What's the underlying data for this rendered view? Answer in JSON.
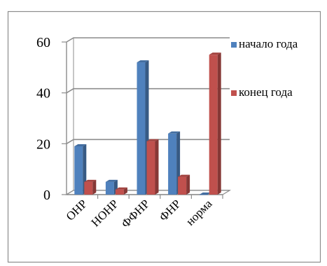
{
  "chart_data": {
    "type": "bar",
    "categories": [
      "ОНР",
      "НОНР",
      "ФФНР",
      "ФНР",
      "норма"
    ],
    "series": [
      {
        "name": "начало года",
        "values": [
          19,
          5,
          52,
          24,
          0
        ],
        "color": "#4f81bd"
      },
      {
        "name": "конец года",
        "values": [
          5,
          2,
          21,
          7,
          55
        ],
        "color": "#c0504d"
      }
    ],
    "ylim": [
      0,
      60
    ],
    "yticks": [
      "0",
      "20",
      "40",
      "60"
    ],
    "grid": true,
    "legend": "right",
    "style": "3d"
  }
}
